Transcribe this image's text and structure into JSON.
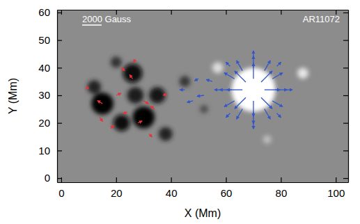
{
  "chart_data": {
    "type": "vector",
    "x_label": "X (Mm)",
    "y_label": "Y (Mm)",
    "annotations": [
      "AR11072"
    ],
    "reference_vector": {
      "value": 2000,
      "label": "2000 Gauss"
    },
    "xlim": [
      -1.5,
      104.5
    ],
    "ylim": [
      -1.5,
      61
    ],
    "xticks": [
      0,
      20,
      40,
      60,
      80,
      100
    ],
    "yticks": [
      0,
      10,
      20,
      30,
      40,
      50,
      60
    ],
    "bz_range": [
      -2000,
      2000
    ],
    "magnetogram": {
      "x": [
        70,
        57,
        88,
        75,
        15,
        26,
        30,
        22,
        35,
        27,
        12,
        38,
        20,
        45,
        52
      ],
      "y": [
        32,
        40,
        38,
        14,
        27,
        38,
        22,
        20,
        30,
        30,
        33,
        16,
        42,
        35,
        25
      ],
      "r": [
        8,
        2,
        2,
        1.5,
        4,
        3.5,
        4,
        3,
        3,
        3,
        2.5,
        2.5,
        2,
        2,
        1.5
      ],
      "bz": [
        2000,
        1400,
        1600,
        900,
        -2000,
        -1900,
        -2000,
        -1800,
        -1700,
        -1600,
        -1500,
        -1500,
        -1300,
        -1200,
        -900
      ]
    },
    "series": [
      {
        "color": "#3355cc",
        "x": [
          74,
          72.8,
          70,
          67.2,
          66,
          67.2,
          70,
          72.8,
          78,
          76.9,
          74,
          70,
          66,
          63.1,
          62,
          63.1,
          66,
          70,
          74,
          76.9,
          82,
          70,
          58,
          70,
          78.5,
          61.5,
          61.5,
          78.5,
          52,
          48,
          45,
          55,
          50
        ],
        "y": [
          32,
          34.8,
          36,
          34.8,
          32,
          29.2,
          28,
          29.2,
          32,
          36,
          38.9,
          40,
          38.9,
          36,
          32,
          28,
          25.1,
          24,
          25.1,
          28,
          32,
          44,
          32,
          20,
          40.5,
          40.5,
          23.5,
          23.5,
          30,
          28,
          32,
          35,
          36
        ],
        "u": [
          1600,
          1130,
          0,
          -1130,
          -1600,
          -1130,
          0,
          1130,
          1200,
          1040,
          600,
          0,
          -600,
          -1040,
          -1200,
          -1040,
          -600,
          0,
          600,
          1040,
          600,
          0,
          -600,
          0,
          420,
          -420,
          -420,
          420,
          -700,
          -600,
          -500,
          -600,
          -400
        ],
        "v": [
          0,
          1130,
          1600,
          1130,
          0,
          -1130,
          -1600,
          -1130,
          0,
          600,
          1040,
          1200,
          1040,
          600,
          0,
          -600,
          -1040,
          -1200,
          -1040,
          -600,
          0,
          600,
          0,
          -600,
          420,
          420,
          -420,
          -420,
          -100,
          -150,
          0,
          200,
          -200
        ]
      },
      {
        "color": "#e8323a",
        "x": [
          15,
          14,
          24,
          28,
          30,
          26,
          22,
          34,
          20,
          32,
          10,
          37,
          27,
          18
        ],
        "y": [
          27,
          22,
          24,
          20,
          28,
          36,
          40,
          25,
          30,
          16,
          33,
          30,
          43,
          18
        ],
        "u": [
          -500,
          300,
          -400,
          400,
          500,
          -300,
          300,
          -400,
          500,
          300,
          -300,
          400,
          -200,
          300
        ],
        "v": [
          300,
          -400,
          -200,
          200,
          -300,
          400,
          -300,
          300,
          200,
          -300,
          -200,
          100,
          -300,
          300
        ]
      }
    ]
  }
}
